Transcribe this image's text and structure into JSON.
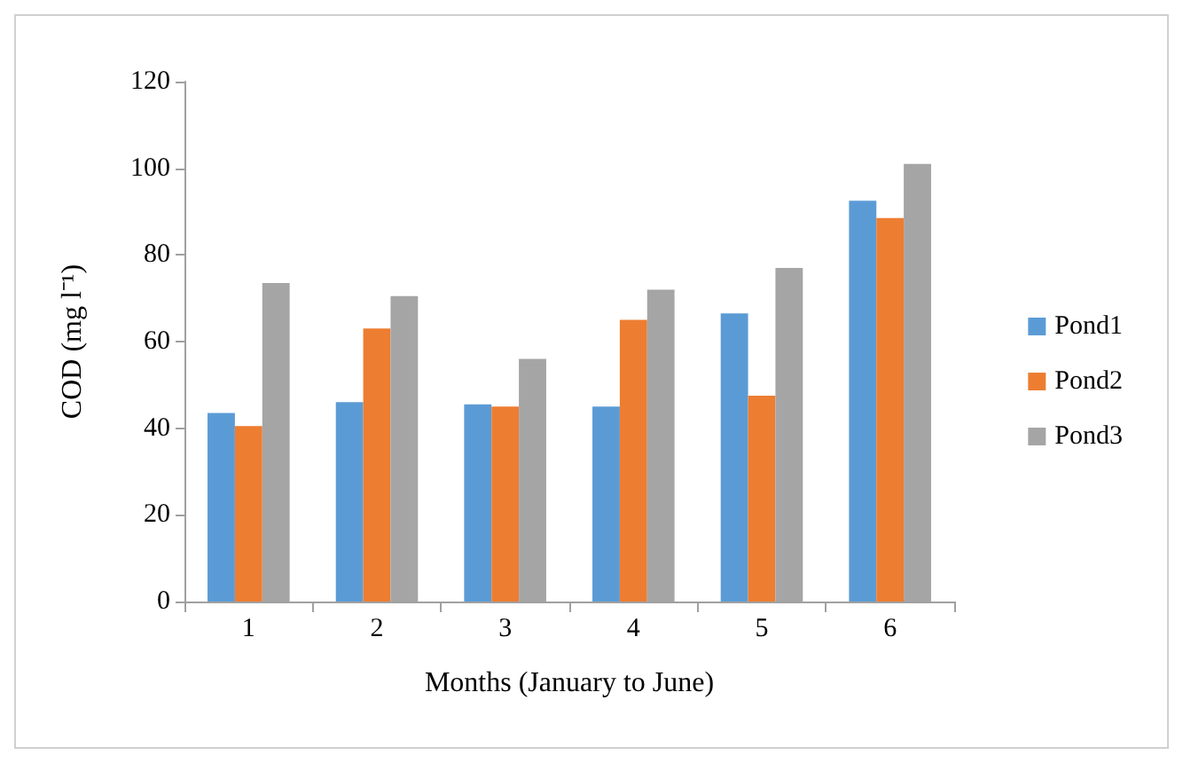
{
  "chart_data": {
    "type": "bar",
    "xlabel": "Months (January to June)",
    "ylabel": "COD (mg l⁻¹)",
    "categories": [
      "1",
      "2",
      "3",
      "4",
      "5",
      "6"
    ],
    "series": [
      {
        "name": "Pond1",
        "color": "#5b9bd5",
        "values": [
          43.5,
          46,
          45.5,
          45,
          66.5,
          92.5
        ]
      },
      {
        "name": "Pond2",
        "color": "#ed7d31",
        "values": [
          40.5,
          63,
          45,
          65,
          47.5,
          88.5
        ]
      },
      {
        "name": "Pond3",
        "color": "#a5a5a5",
        "values": [
          73.5,
          70.5,
          56,
          72,
          77,
          101
        ]
      }
    ],
    "ylim": [
      0,
      120
    ],
    "yticks": [
      0,
      20,
      40,
      60,
      80,
      100,
      120
    ],
    "grid": false,
    "legend": "right"
  }
}
